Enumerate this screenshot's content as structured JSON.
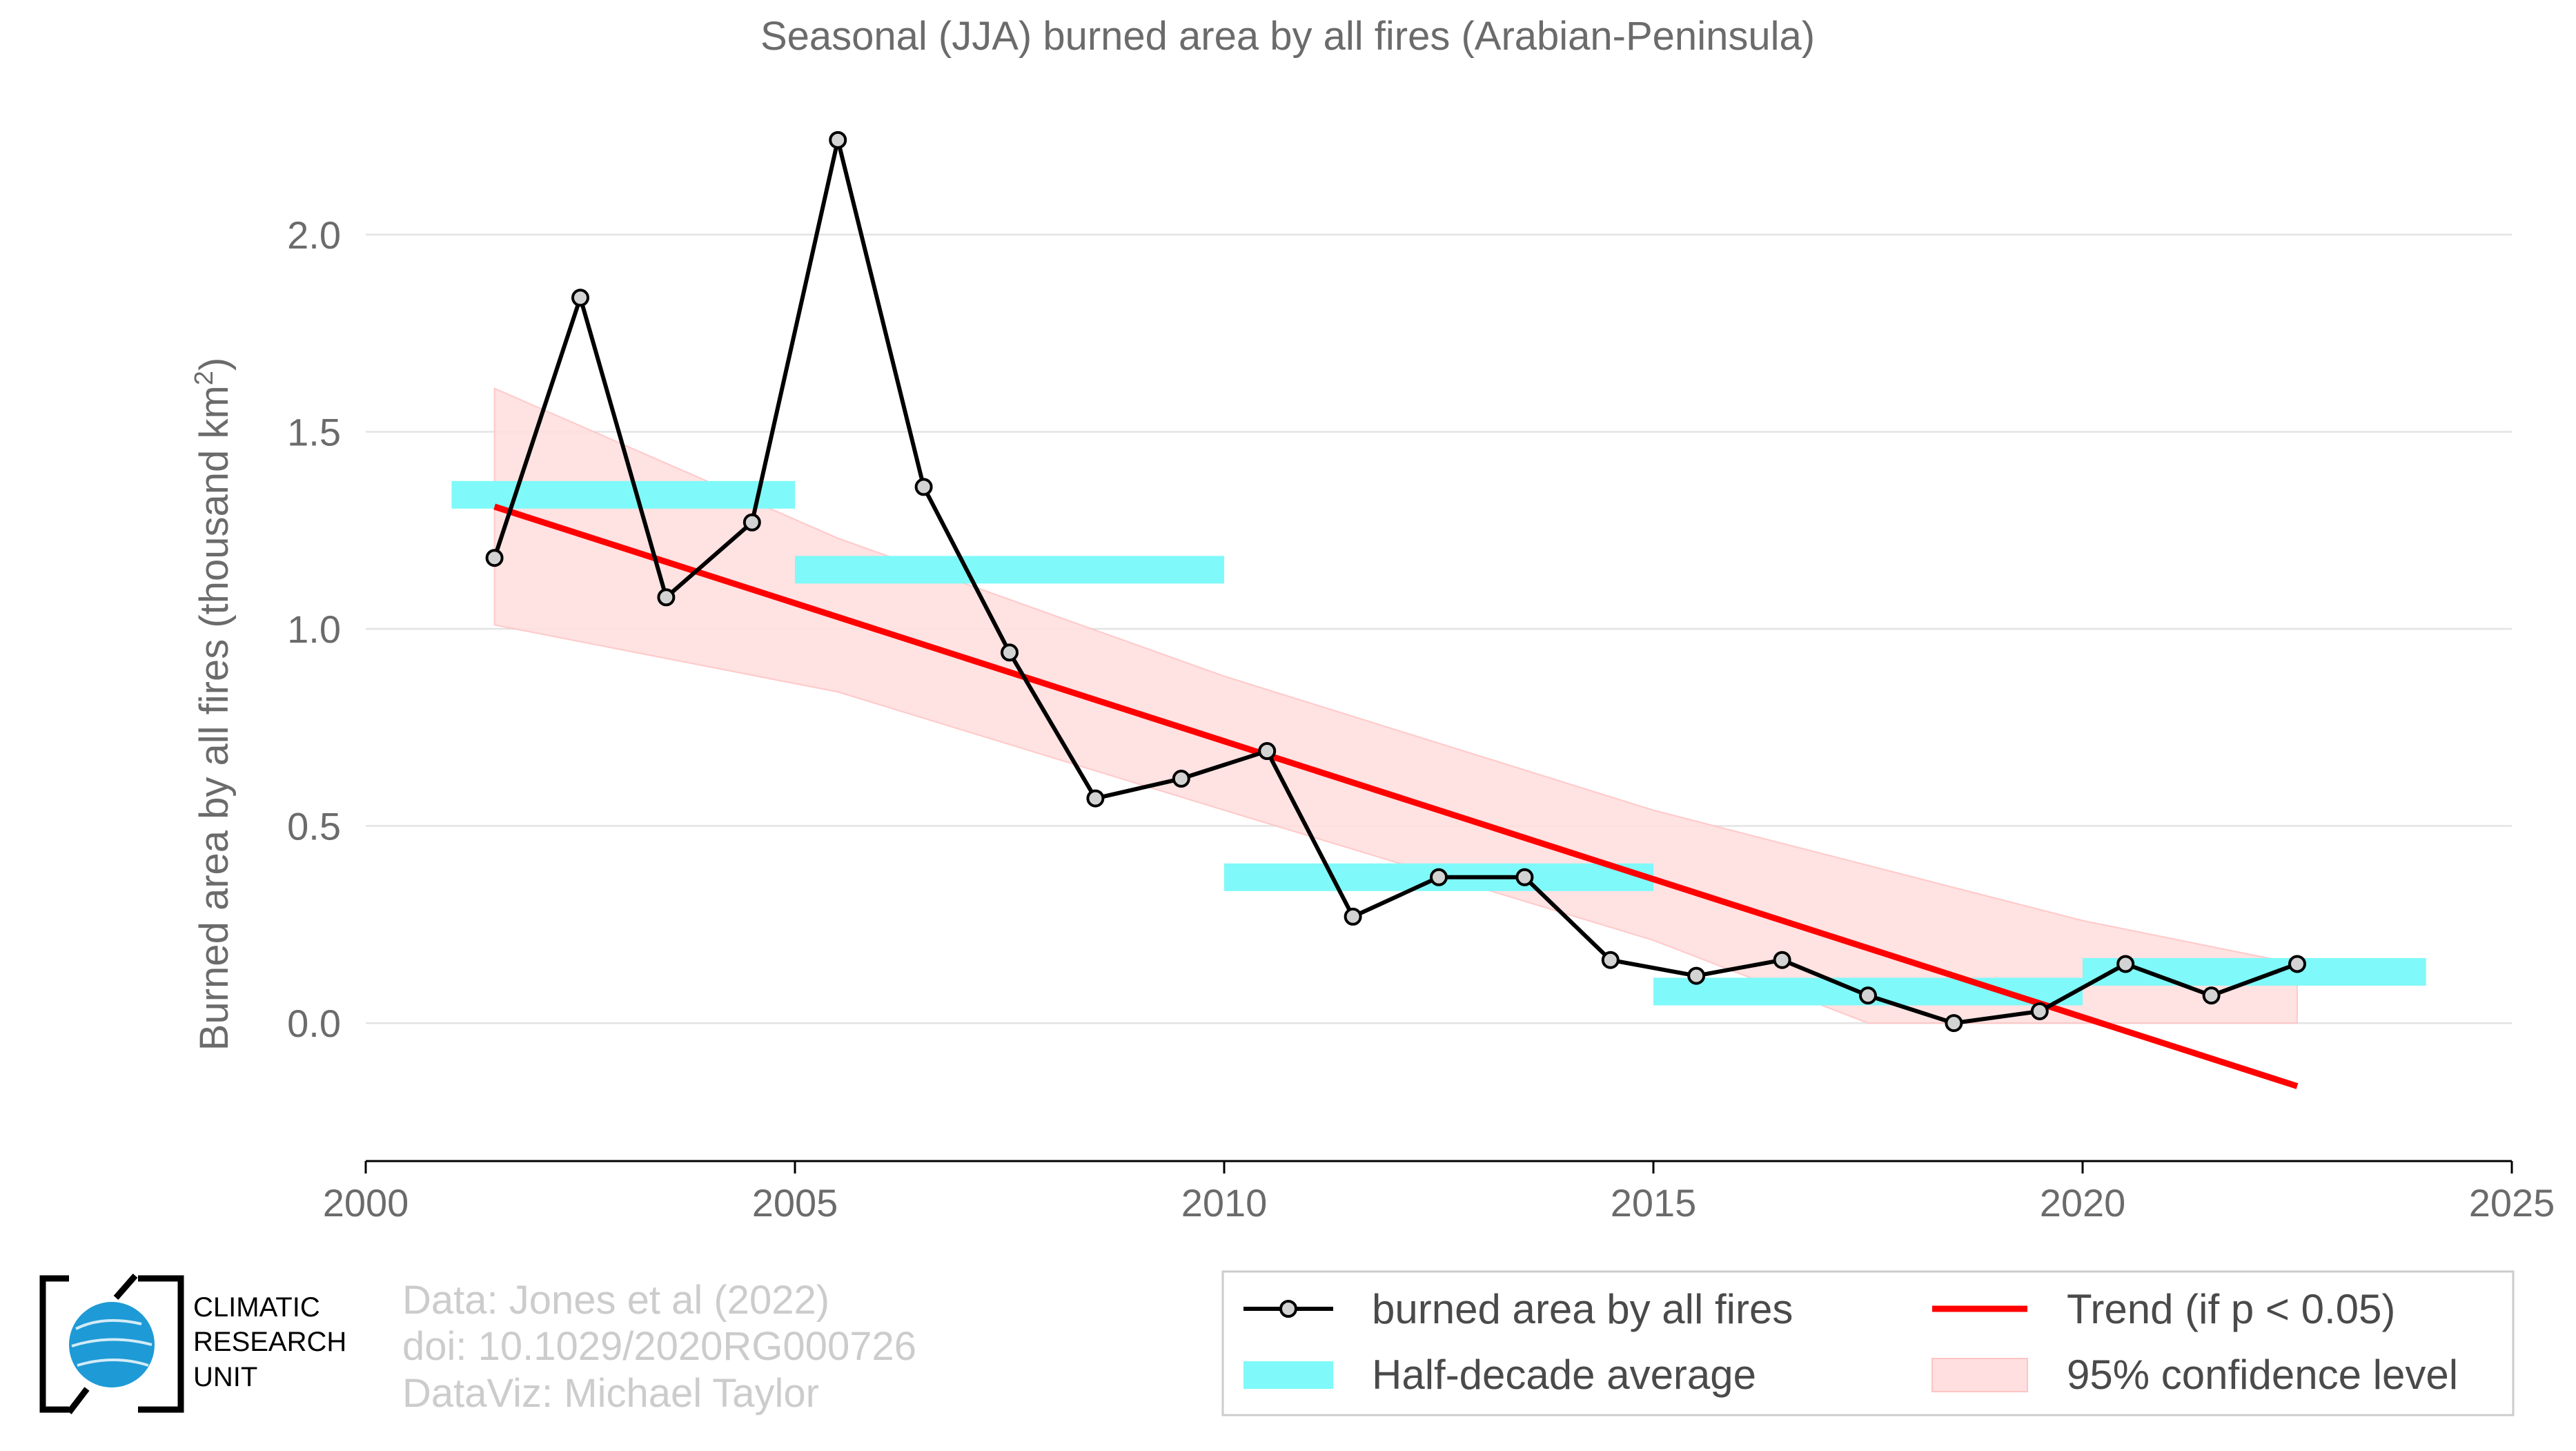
{
  "chart_data": {
    "type": "line",
    "title": "Seasonal (JJA) burned area by all fires (Arabian-Peninsula)",
    "ylabel_main": "Burned area by all fires (thousand km",
    "ylabel_sup": "2",
    "ylabel_end": ")",
    "xlabel": "",
    "xlim": [
      2000,
      2025
    ],
    "ylim": [
      -0.35,
      2.35
    ],
    "xticks": [
      2000,
      2005,
      2010,
      2015,
      2020,
      2025
    ],
    "yticks": [
      0.0,
      0.5,
      1.0,
      1.5,
      2.0
    ],
    "ytick_labels": [
      "0.0",
      "0.5",
      "1.0",
      "1.5",
      "2.0"
    ],
    "grid": "horizontal",
    "legend_position": "bottom-right",
    "series": {
      "name": "burned area by all fires",
      "color": "#000000",
      "marker_color": "#d3d3d3",
      "x": [
        2001.5,
        2002.5,
        2003.5,
        2004.5,
        2005.5,
        2006.5,
        2007.5,
        2008.5,
        2009.5,
        2010.5,
        2011.5,
        2012.5,
        2013.5,
        2014.5,
        2015.5,
        2016.5,
        2017.5,
        2018.5,
        2019.5,
        2020.5,
        2021.5,
        2022.5
      ],
      "y": [
        1.18,
        1.84,
        1.08,
        1.27,
        2.24,
        1.36,
        0.94,
        0.57,
        0.62,
        0.69,
        0.27,
        0.37,
        0.37,
        0.16,
        0.12,
        0.16,
        0.07,
        0.0,
        0.03,
        0.15,
        0.07,
        0.15
      ]
    },
    "half_decade_average": {
      "name": "Half-decade average",
      "color": "#7ff9f9",
      "segments": [
        {
          "x0": 2001,
          "x1": 2005,
          "y": 1.34
        },
        {
          "x0": 2005,
          "x1": 2010,
          "y": 1.15
        },
        {
          "x0": 2010,
          "x1": 2015,
          "y": 0.37
        },
        {
          "x0": 2015,
          "x1": 2020,
          "y": 0.08
        },
        {
          "x0": 2020,
          "x1": 2024,
          "y": 0.13
        }
      ]
    },
    "trend": {
      "name": "Trend (if p < 0.05)",
      "color": "#ff0000",
      "x": [
        2001.5,
        2022.5
      ],
      "y": [
        1.31,
        -0.16
      ]
    },
    "confidence": {
      "name": "95% confidence level",
      "color": "#ffdfdf",
      "upper": [
        [
          2001.5,
          1.61
        ],
        [
          2005.5,
          1.23
        ],
        [
          2010.0,
          0.88
        ],
        [
          2015.0,
          0.54
        ],
        [
          2020.0,
          0.26
        ],
        [
          2022.5,
          0.15
        ]
      ],
      "lower": [
        [
          2001.5,
          1.01
        ],
        [
          2005.5,
          0.84
        ],
        [
          2010.0,
          0.54
        ],
        [
          2015.0,
          0.21
        ],
        [
          2017.5,
          0.0
        ],
        [
          2022.5,
          0.0
        ]
      ]
    }
  },
  "credits": {
    "line1": "Data: Jones et al (2022)",
    "line2": "doi: 10.1029/2020RG000726",
    "line3": "DataViz: Michael Taylor"
  },
  "logo": {
    "line1": "CLIMATIC",
    "line2": "RESEARCH",
    "line3": "UNIT",
    "globe_color": "#1e9ad6"
  }
}
